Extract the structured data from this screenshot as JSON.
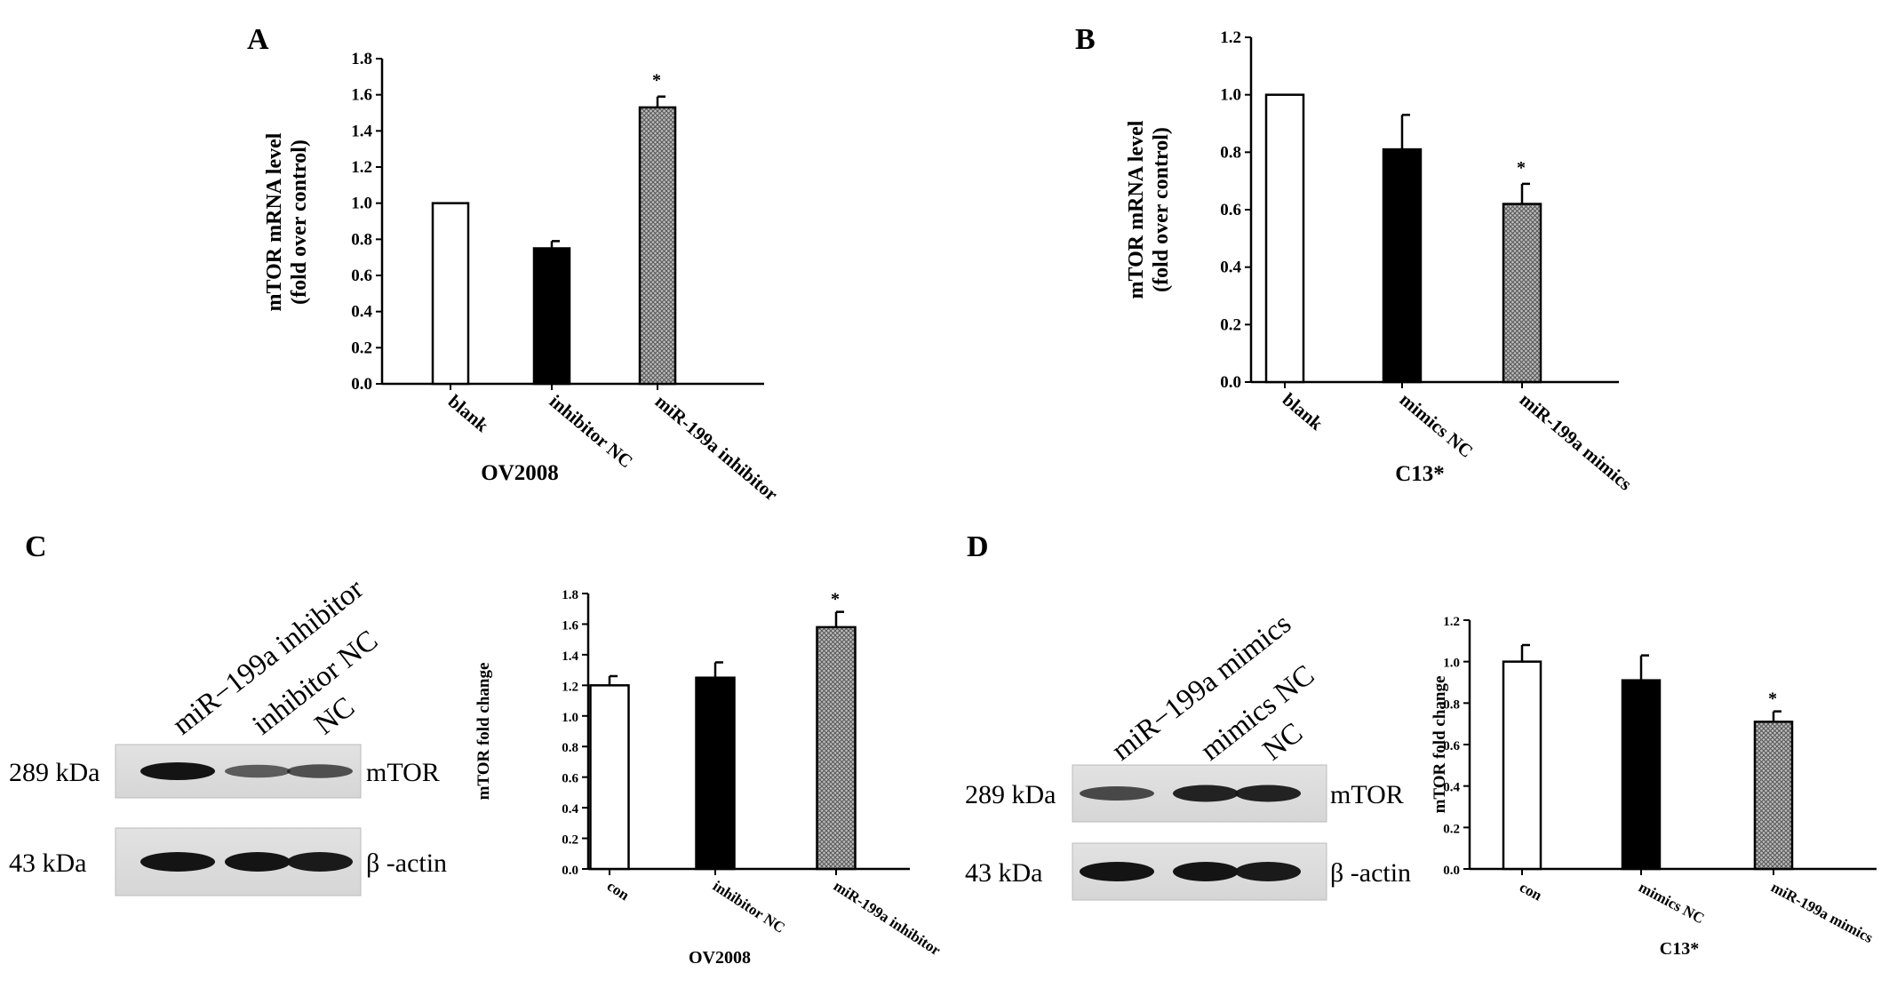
{
  "chart_data": [
    {
      "panel": "A",
      "type": "bar",
      "categories": [
        "blank",
        "inhibitor NC",
        "miR-199a inhibitor"
      ],
      "values": [
        1.0,
        0.75,
        1.53
      ],
      "errors": [
        0,
        0.04,
        0.06
      ],
      "significance": [
        "",
        "",
        "*"
      ],
      "fills": [
        "white",
        "black",
        "hatch"
      ],
      "xlabel": "OV2008",
      "ylabel": [
        "mTOR mRNA level",
        "(fold over control)"
      ],
      "ylim": [
        0,
        1.8
      ],
      "yticks": [
        "0.0",
        "0.2",
        "0.4",
        "0.6",
        "0.8",
        "1.0",
        "1.2",
        "1.4",
        "1.6",
        "1.8"
      ]
    },
    {
      "panel": "B",
      "type": "bar",
      "categories": [
        "blank",
        "mimics NC",
        "miR-199a mimics"
      ],
      "values": [
        1.0,
        0.81,
        0.62
      ],
      "errors": [
        0,
        0.12,
        0.07
      ],
      "significance": [
        "",
        "",
        "*"
      ],
      "fills": [
        "white",
        "black",
        "hatch"
      ],
      "xlabel": "C13*",
      "ylabel": [
        "mTOR mRNA level",
        "(fold over control)"
      ],
      "ylim": [
        0,
        1.2
      ],
      "yticks": [
        "0.0",
        "0.2",
        "0.4",
        "0.6",
        "0.8",
        "1.0",
        "1.2"
      ]
    },
    {
      "panel": "C",
      "type": "bar",
      "categories": [
        "con",
        "inhibitor NC",
        "miR-199a inhibitor"
      ],
      "values": [
        1.2,
        1.25,
        1.58
      ],
      "errors": [
        0.06,
        0.1,
        0.1
      ],
      "significance": [
        "",
        "",
        "*"
      ],
      "fills": [
        "white",
        "black",
        "hatch"
      ],
      "xlabel": "OV2008",
      "ylabel": [
        "mTOR fold change"
      ],
      "ylim": [
        0,
        1.8
      ],
      "yticks": [
        "0.0",
        "0.2",
        "0.4",
        "0.6",
        "0.8",
        "1.0",
        "1.2",
        "1.4",
        "1.6",
        "1.8"
      ]
    },
    {
      "panel": "D",
      "type": "bar",
      "categories": [
        "con",
        "mimics NC",
        "miR-199a mimics"
      ],
      "values": [
        1.0,
        0.91,
        0.71
      ],
      "errors": [
        0.08,
        0.12,
        0.05
      ],
      "significance": [
        "",
        "",
        "*"
      ],
      "fills": [
        "white",
        "black",
        "hatch"
      ],
      "xlabel": "C13*",
      "ylabel": [
        "mTOR fold change"
      ],
      "ylim": [
        0,
        1.2
      ],
      "yticks": [
        "0.0",
        "0.2",
        "0.4",
        "0.6",
        "0.8",
        "1.0",
        "1.2"
      ]
    }
  ],
  "blots": {
    "C": {
      "lanes": [
        "miR−199a inhibitor",
        "inhibitor NC",
        "NC"
      ],
      "rows": [
        {
          "size": "289 kDa",
          "protein": "mTOR",
          "intensity": [
            1.0,
            0.45,
            0.55
          ]
        },
        {
          "size": "43 kDa",
          "protein": "β -actin",
          "intensity": [
            1.0,
            1.0,
            0.95
          ]
        }
      ]
    },
    "D": {
      "lanes": [
        "miR−199a mimics",
        "mimics NC",
        "NC"
      ],
      "rows": [
        {
          "size": "289 kDa",
          "protein": "mTOR",
          "intensity": [
            0.6,
            0.9,
            0.9
          ]
        },
        {
          "size": "43 kDa",
          "protein": "β -actin",
          "intensity": [
            1.0,
            1.0,
            0.95
          ]
        }
      ]
    }
  }
}
